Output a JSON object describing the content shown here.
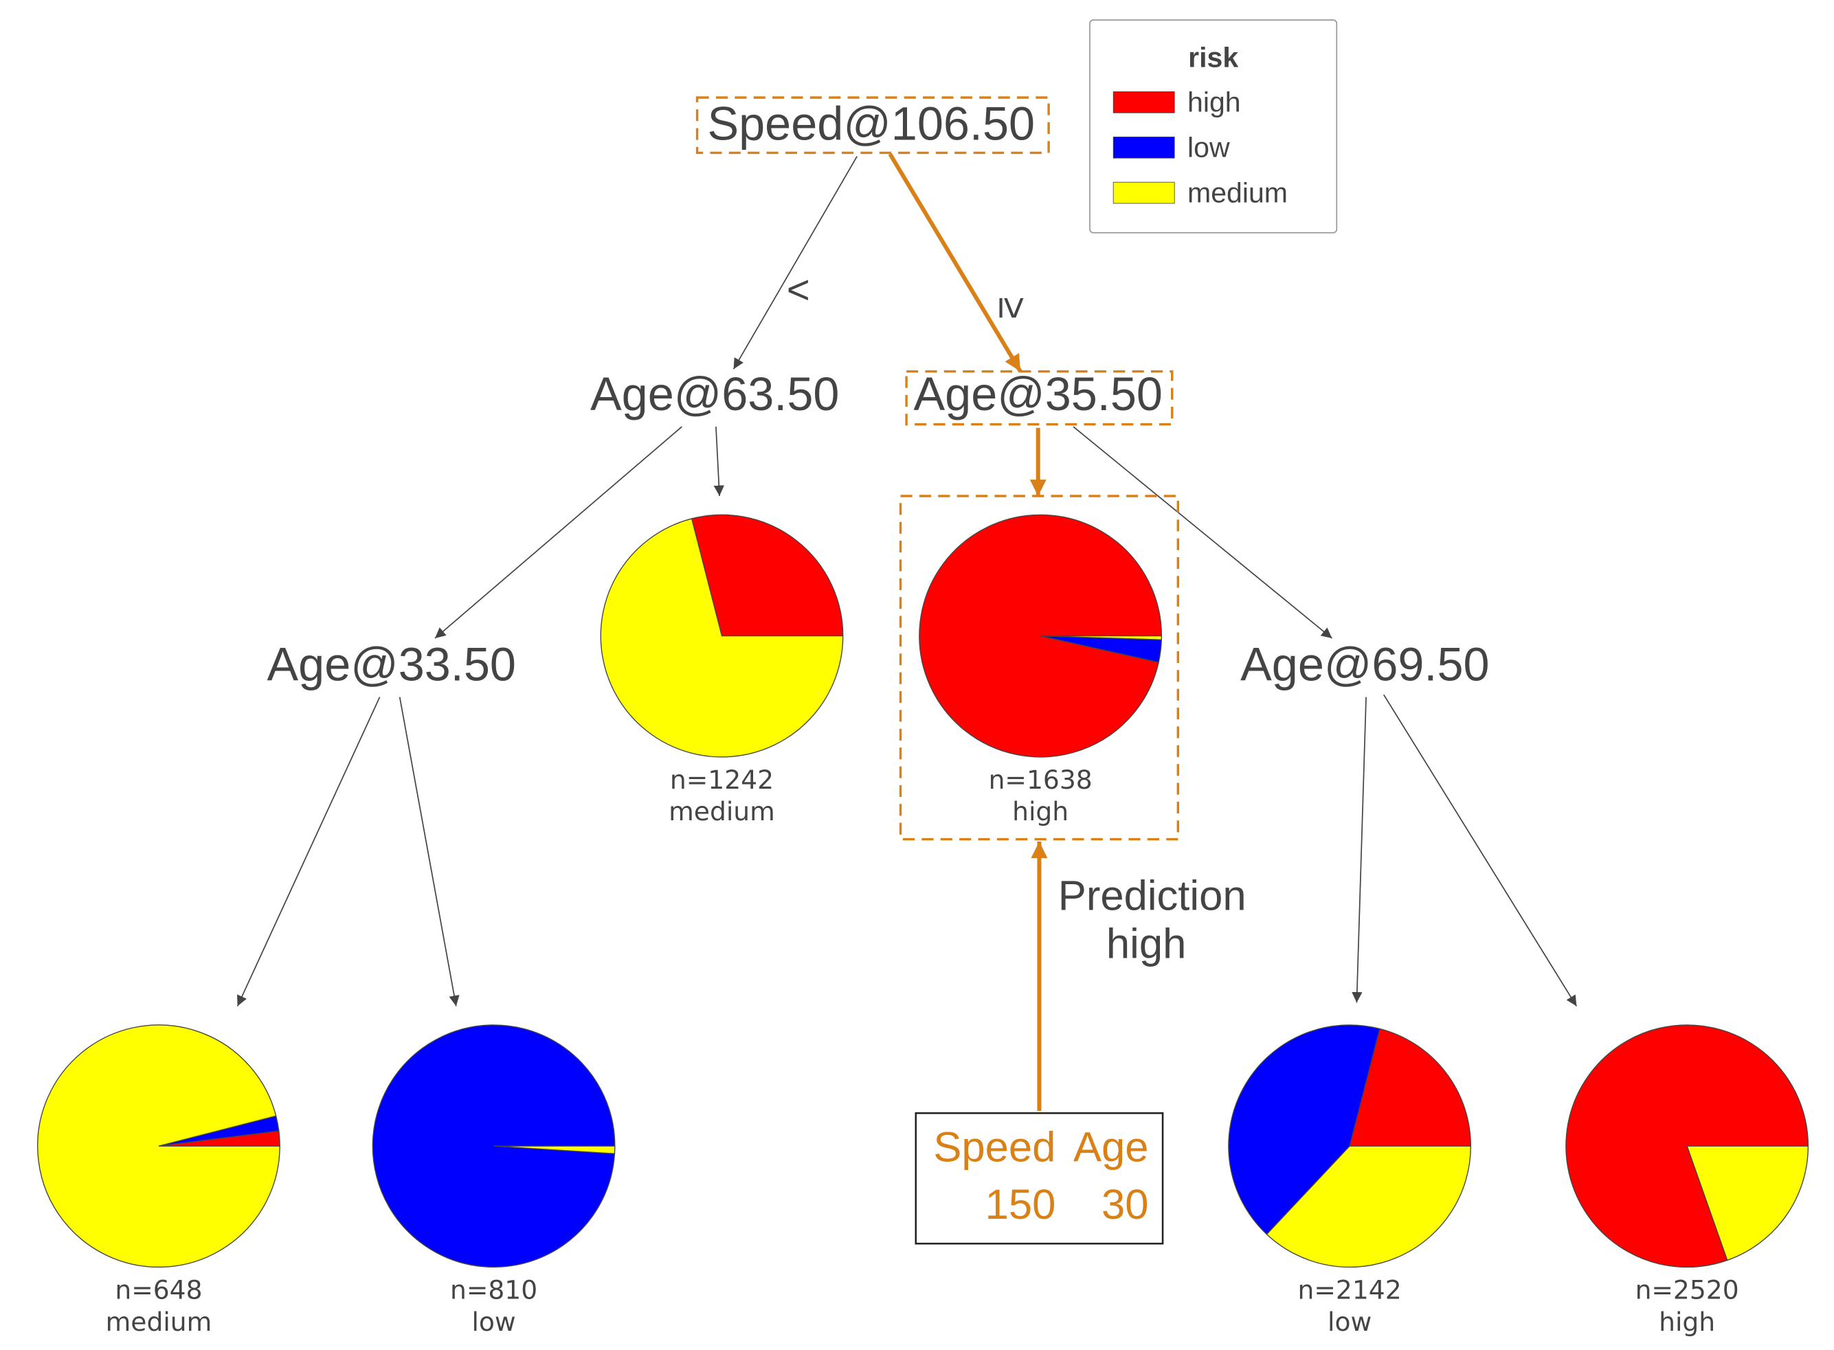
{
  "legend": {
    "title": "risk",
    "items": [
      {
        "label": "high",
        "color": "#ff0000"
      },
      {
        "label": "low",
        "color": "#0000ff"
      },
      {
        "label": "medium",
        "color": "#ffff00"
      }
    ]
  },
  "nodes": [
    {
      "label": "Speed@106.50"
    },
    {
      "label": "Age@63.50"
    },
    {
      "label": "Age@35.50"
    },
    {
      "label": "Age@33.50"
    },
    {
      "label": "Age@69.50"
    }
  ],
  "edge_labels": [
    "<",
    "≥"
  ],
  "leaves": [
    {
      "n": "n=648",
      "class": "medium",
      "shares": [
        2,
        2,
        96
      ]
    },
    {
      "n": "n=810",
      "class": "low",
      "shares": [
        0,
        99,
        1
      ]
    },
    {
      "n": "n=1242",
      "class": "medium",
      "shares": [
        29,
        0,
        71
      ]
    },
    {
      "n": "n=1638",
      "class": "high",
      "shares": [
        96.5,
        3,
        0.5
      ]
    },
    {
      "n": "n=2142",
      "class": "low",
      "shares": [
        21,
        42,
        37
      ]
    },
    {
      "n": "n=2520",
      "class": "high",
      "shares": [
        80.4,
        0,
        19.6
      ]
    }
  ],
  "prediction": {
    "label": "Prediction",
    "class": "high"
  },
  "input": {
    "headers": [
      "Speed",
      "Age"
    ],
    "values": [
      150,
      30
    ]
  }
}
